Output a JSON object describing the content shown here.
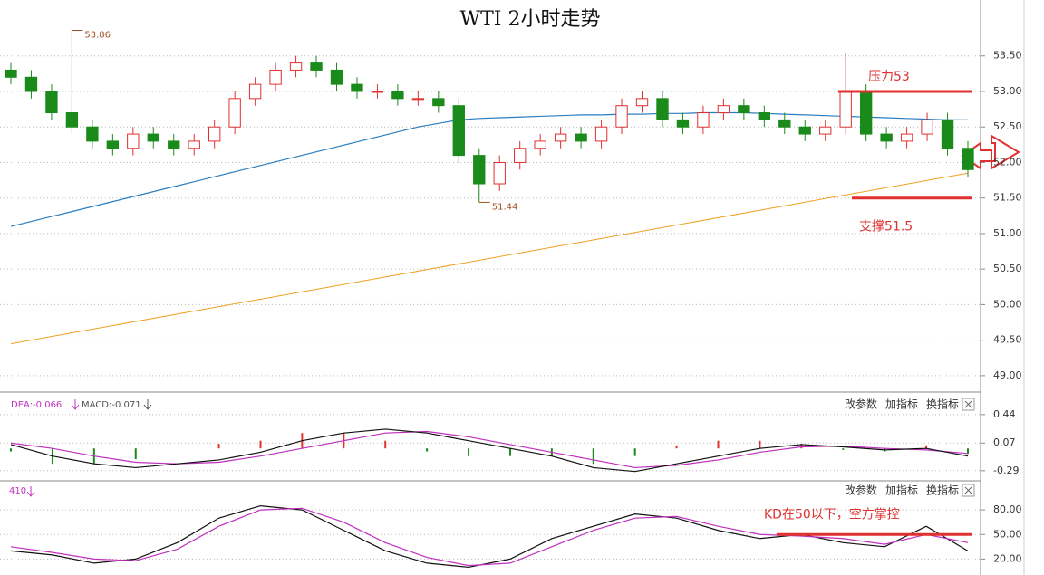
{
  "chart_data": [
    {
      "type": "candlestick",
      "title": "WTI 2小时走势",
      "up_color": "#e03030",
      "down_color": "#1a8a1a",
      "open": [
        53.3,
        53.2,
        53.0,
        52.7,
        52.5,
        52.3,
        52.2,
        52.4,
        52.3,
        52.2,
        52.3,
        52.5,
        52.9,
        53.1,
        53.3,
        53.4,
        53.3,
        53.1,
        53.0,
        53.0,
        52.9,
        52.9,
        52.8,
        52.1,
        51.7,
        52.0,
        52.2,
        52.3,
        52.4,
        52.3,
        52.5,
        52.8,
        52.9,
        52.6,
        52.5,
        52.7,
        52.8,
        52.7,
        52.6,
        52.5,
        52.4,
        52.5,
        53.0,
        52.4,
        52.3,
        52.4,
        52.6,
        52.2
      ],
      "high": [
        53.4,
        53.3,
        53.1,
        53.86,
        52.6,
        52.4,
        52.5,
        52.5,
        52.4,
        52.4,
        52.6,
        53.0,
        53.2,
        53.4,
        53.5,
        53.5,
        53.4,
        53.2,
        53.1,
        53.1,
        53.0,
        53.0,
        52.9,
        52.2,
        52.1,
        52.3,
        52.4,
        52.5,
        52.5,
        52.6,
        52.9,
        53.0,
        53.0,
        52.7,
        52.8,
        52.9,
        52.9,
        52.8,
        52.7,
        52.6,
        52.6,
        53.55,
        53.1,
        52.5,
        52.5,
        52.7,
        52.7,
        52.3
      ],
      "low": [
        53.1,
        52.9,
        52.6,
        52.4,
        52.2,
        52.1,
        52.1,
        52.2,
        52.1,
        52.1,
        52.2,
        52.4,
        52.8,
        53.0,
        53.2,
        53.2,
        53.0,
        52.9,
        52.9,
        52.8,
        52.8,
        52.7,
        52.0,
        51.44,
        51.6,
        51.9,
        52.1,
        52.2,
        52.2,
        52.2,
        52.4,
        52.7,
        52.5,
        52.4,
        52.4,
        52.6,
        52.6,
        52.5,
        52.4,
        52.3,
        52.3,
        52.4,
        52.3,
        52.2,
        52.2,
        52.3,
        52.1,
        51.8
      ],
      "close": [
        53.2,
        53.0,
        52.7,
        52.5,
        52.3,
        52.2,
        52.4,
        52.3,
        52.2,
        52.3,
        52.5,
        52.9,
        53.1,
        53.3,
        53.4,
        53.3,
        53.1,
        53.0,
        53.0,
        52.9,
        52.9,
        52.8,
        52.1,
        51.7,
        52.0,
        52.2,
        52.3,
        52.4,
        52.3,
        52.5,
        52.8,
        52.9,
        52.6,
        52.5,
        52.7,
        52.8,
        52.7,
        52.6,
        52.5,
        52.4,
        52.5,
        53.0,
        52.4,
        52.3,
        52.4,
        52.6,
        52.2,
        51.9
      ],
      "series": [
        {
          "color": "#2a7ec0",
          "values": [
            51.1,
            51.17,
            51.24,
            51.31,
            51.38,
            51.45,
            51.52,
            51.59,
            51.66,
            51.73,
            51.8,
            51.87,
            51.94,
            52.01,
            52.08,
            52.15,
            52.22,
            52.29,
            52.36,
            52.43,
            52.5,
            52.55,
            52.6,
            52.62,
            52.63,
            52.64,
            52.65,
            52.66,
            52.67,
            52.67,
            52.68,
            52.68,
            52.69,
            52.69,
            52.7,
            52.7,
            52.7,
            52.69,
            52.68,
            52.67,
            52.66,
            52.65,
            52.64,
            52.63,
            52.62,
            52.61,
            52.6,
            52.6
          ]
        }
      ],
      "trend_line": {
        "color": "#f0a020",
        "x": [
          0,
          47
        ],
        "values": [
          49.45,
          51.85
        ]
      },
      "annotations": [
        {
          "index": 3,
          "value": 53.86,
          "label": "53.86"
        },
        {
          "index": 23,
          "value": 51.44,
          "label": "51.44"
        }
      ],
      "levels": [
        {
          "value": 53,
          "label": "压力53"
        },
        {
          "value": 51.5,
          "label": "支撑51.5"
        }
      ],
      "ylim": [
        48.68,
        53.93
      ],
      "yticks": [
        {
          "value": 53.5,
          "label": "53.50"
        },
        {
          "value": 53,
          "label": "53.00"
        },
        {
          "value": 52.5,
          "label": "52.50"
        },
        {
          "value": 52,
          "label": "52.00"
        },
        {
          "value": 51.5,
          "label": "51.50"
        },
        {
          "value": 51,
          "label": "51.00"
        },
        {
          "value": 50.5,
          "label": "50.50"
        },
        {
          "value": 50,
          "label": "50.00"
        },
        {
          "value": 49.5,
          "label": "49.50"
        },
        {
          "value": 49,
          "label": "49.00"
        }
      ],
      "grid": true
    },
    {
      "type": "macd",
      "buttons": [
        "改参数",
        "加指标",
        "换指标"
      ],
      "series": [
        {
          "name": "DEA:-0.066",
          "color": "#c030c0",
          "values": [
            0.07,
            0.0,
            -0.1,
            -0.18,
            -0.2,
            -0.18,
            -0.1,
            0.0,
            0.1,
            0.2,
            0.22,
            0.15,
            0.05,
            -0.05,
            -0.15,
            -0.25,
            -0.22,
            -0.15,
            -0.05,
            0.02,
            0.03,
            0.0,
            -0.02,
            -0.066
          ]
        },
        {
          "color": "#111111",
          "values": [
            0.05,
            -0.1,
            -0.2,
            -0.25,
            -0.2,
            -0.15,
            -0.05,
            0.1,
            0.2,
            0.25,
            0.2,
            0.1,
            0.0,
            -0.1,
            -0.25,
            -0.3,
            -0.2,
            -0.1,
            0.0,
            0.05,
            0.02,
            -0.02,
            0.0,
            -0.1
          ]
        }
      ],
      "bars": {
        "name": "MACD:-0.071",
        "values": [
          -0.04,
          -0.2,
          -0.2,
          -0.14,
          0.0,
          0.06,
          0.1,
          0.2,
          0.2,
          0.1,
          -0.04,
          -0.1,
          -0.1,
          -0.1,
          -0.2,
          -0.1,
          0.04,
          0.1,
          0.1,
          0.06,
          -0.02,
          -0.04,
          0.04,
          -0.071
        ],
        "up_color": "#e03030",
        "down_color": "#1a8a1a"
      },
      "ylim": [
        -0.41,
        0.65
      ],
      "yticks": [
        0.44,
        0.07,
        -0.29
      ],
      "grid": true
    },
    {
      "type": "line",
      "title": "410",
      "buttons": [
        "改参数",
        "加指标",
        "换指标"
      ],
      "series": [
        {
          "color": "#111111",
          "values": [
            30,
            25,
            15,
            20,
            40,
            70,
            85,
            80,
            55,
            30,
            15,
            10,
            20,
            45,
            60,
            75,
            70,
            55,
            45,
            50,
            40,
            35,
            60,
            30
          ]
        },
        {
          "color": "#c030c0",
          "values": [
            35,
            28,
            20,
            18,
            32,
            60,
            80,
            82,
            65,
            40,
            22,
            12,
            15,
            35,
            55,
            70,
            72,
            60,
            50,
            48,
            45,
            38,
            50,
            40
          ]
        }
      ],
      "levels": [
        {
          "value": 50,
          "label": "KD在50以下，空方掌控"
        }
      ],
      "ylim": [
        16,
        110
      ],
      "yticks": [
        {
          "value": 80,
          "label": "80.00"
        },
        {
          "value": 50,
          "label": "50.00"
        },
        {
          "value": 20,
          "label": "20.00"
        }
      ],
      "grid": true
    }
  ]
}
